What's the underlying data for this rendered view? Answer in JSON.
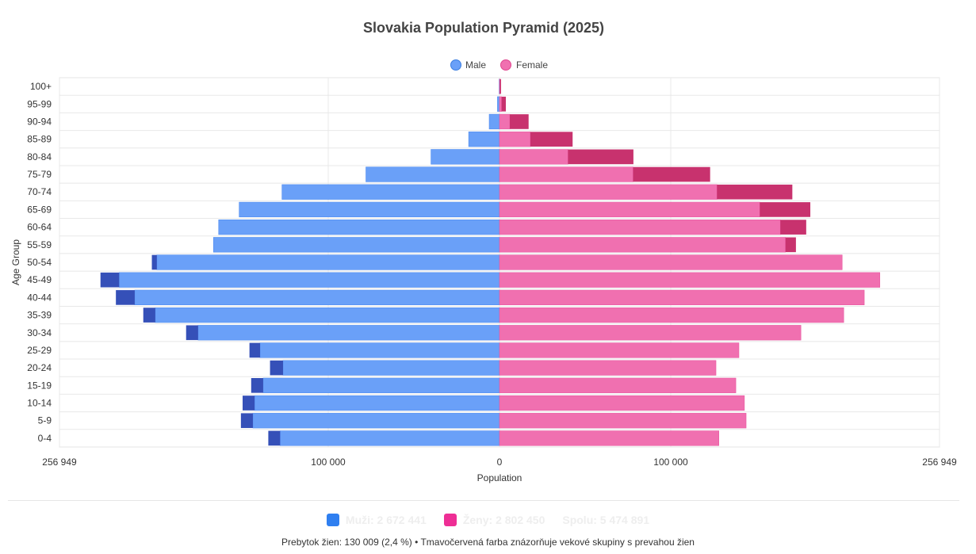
{
  "chart_data": {
    "type": "bar",
    "title": "Slovakia Population Pyramid (2025)",
    "xlabel": "Population",
    "ylabel": "Age Group",
    "xlim": [
      -256949,
      256949
    ],
    "x_ticks": [
      {
        "value": -256949,
        "label": "256 949"
      },
      {
        "value": -100000,
        "label": "100 000"
      },
      {
        "value": 0,
        "label": "0"
      },
      {
        "value": 100000,
        "label": "100 000"
      },
      {
        "value": 256949,
        "label": "256 949"
      }
    ],
    "legend_position": "top-center",
    "grid": true,
    "categories": [
      "100+",
      "95-99",
      "90-94",
      "85-89",
      "80-84",
      "75-79",
      "70-74",
      "65-69",
      "60-64",
      "55-59",
      "50-54",
      "45-49",
      "40-44",
      "35-39",
      "30-34",
      "25-29",
      "20-24",
      "15-19",
      "10-14",
      "5-9",
      "0-4"
    ],
    "series": [
      {
        "name": "Male",
        "color": "#6aa0f8",
        "values": [
          200,
          1200,
          6000,
          18000,
          40000,
          78000,
          127000,
          152000,
          164000,
          167000,
          203000,
          233000,
          224000,
          208000,
          183000,
          146000,
          134000,
          145000,
          150000,
          151000,
          135000
        ]
      },
      {
        "name": "Female",
        "color": "#f070b0",
        "values": [
          900,
          3700,
          17000,
          42700,
          78200,
          123000,
          171000,
          181500,
          179100,
          173100,
          200100,
          222100,
          213000,
          201000,
          176000,
          139800,
          126400,
          138000,
          143000,
          144000,
          128100
        ]
      }
    ],
    "excess_colors": {
      "male": "#3550b8",
      "female": "#c8326e"
    }
  },
  "summary": {
    "male_label": "Muži: 2 672 441",
    "male_color": "#2f7ff0",
    "female_label": "Ženy: 2 802 450",
    "female_color": "#ee2e95",
    "total_label": "Spolu: 5 474 891",
    "note": "Prebytok žien: 130 009 (2,4 %) • Tmavočervená farba znázorňuje vekové skupiny s prevahou žien"
  }
}
